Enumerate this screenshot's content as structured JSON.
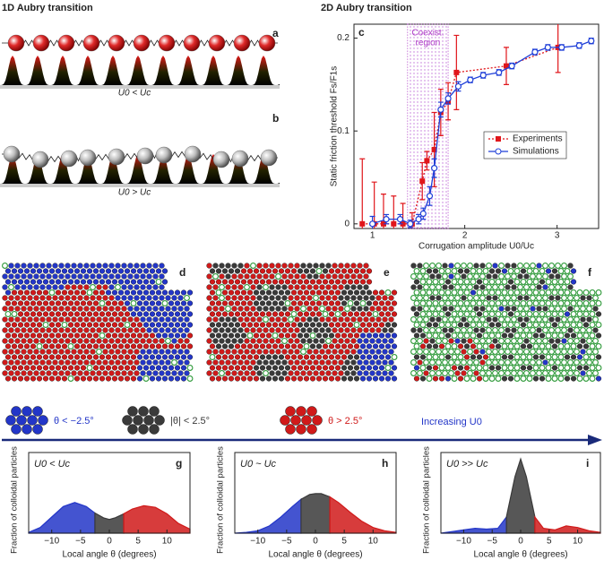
{
  "headings": {
    "left": "1D Aubry transition",
    "right": "2D Aubry transition"
  },
  "schematic": [
    {
      "letter": "a",
      "label": "U0 < Uc"
    },
    {
      "letter": "b",
      "label": "U0 > Uc"
    }
  ],
  "images": [
    {
      "letter": "d"
    },
    {
      "letter": "e"
    },
    {
      "letter": "f"
    }
  ],
  "legend": [
    {
      "label": "θ < −2.5°",
      "color": "#2336c8"
    },
    {
      "label": "|θ| < 2.5°",
      "color": "#3a3a3a"
    },
    {
      "label": "θ > 2.5°",
      "color": "#d01a1a"
    }
  ],
  "arrow_label": "Increasing U0",
  "chart_data": [
    {
      "type": "line",
      "letter": "c",
      "xlabel": "Corrugation amplitude U0/Uc",
      "ylabel": "Static friction threshold Fs/F1s",
      "xlim": [
        0.8,
        3.45
      ],
      "ylim": [
        -0.005,
        0.215
      ],
      "xticks": [
        1,
        2,
        3
      ],
      "yticks": [
        0,
        0.1,
        0.2
      ],
      "region": {
        "lines": [
          "Coexist.",
          "region"
        ],
        "range": [
          1.38,
          1.82
        ],
        "color": "#b040c8"
      },
      "legend": "right",
      "series": [
        {
          "name": "Experiments",
          "color": "#e0161b",
          "marker": "square",
          "dash": true,
          "x": [
            0.89,
            1.02,
            1.12,
            1.23,
            1.33,
            1.43,
            1.54,
            1.59,
            1.67,
            1.74,
            1.82,
            1.91,
            2.45,
            3.01
          ],
          "values": [
            0,
            0,
            0,
            0,
            0,
            0,
            0.046,
            0.068,
            0.08,
            0.12,
            0.132,
            0.163,
            0.17,
            0.19
          ],
          "errors": [
            0.07,
            0.045,
            0.032,
            0.03,
            0.022,
            0.012,
            0.02,
            0.01,
            0.04,
            0.025,
            0.02,
            0.04,
            0.02,
            0.027
          ]
        },
        {
          "name": "Simulations",
          "color": "#1f3fd8",
          "marker": "circle",
          "dash": false,
          "x": [
            1.0,
            1.15,
            1.3,
            1.41,
            1.5,
            1.55,
            1.62,
            1.67,
            1.74,
            1.82,
            1.93,
            2.06,
            2.2,
            2.37,
            2.51,
            2.76,
            2.9,
            3.05,
            3.24,
            3.37
          ],
          "values": [
            0,
            0.005,
            0.005,
            0,
            0.005,
            0.011,
            0.03,
            0.06,
            0.123,
            0.135,
            0.148,
            0.155,
            0.16,
            0.163,
            0.17,
            0.185,
            0.19,
            0.19,
            0.192,
            0.197
          ],
          "errors": [
            0.008,
            0.005,
            0.005,
            0.004,
            0.005,
            0.006,
            0.01,
            0.01,
            0.008,
            0.006,
            0.005,
            0.003,
            0.003,
            0.003,
            0.003,
            0.003,
            0.003,
            0.003,
            0.003,
            0.003
          ]
        }
      ]
    },
    {
      "type": "area",
      "letter": "g",
      "annotation": "U0 < Uc",
      "xlabel": "Local angle θ (degrees)",
      "ylabel": "Fraction of colloidal particles",
      "xlim": [
        -14,
        14
      ],
      "ylim": [
        0,
        1
      ],
      "xticks": [
        {
          "value": -10,
          "label": "−10"
        },
        {
          "value": -5,
          "label": "−5"
        },
        0,
        5,
        10
      ],
      "x": [
        -14,
        -12,
        -10,
        -8,
        -6,
        -4,
        -2.5,
        -1,
        0,
        1,
        2.5,
        4,
        6,
        8,
        10,
        12,
        14
      ],
      "series": [
        {
          "color": "#2336c8",
          "values": [
            0.01,
            0.07,
            0.2,
            0.33,
            0.38,
            0.33,
            0.25,
            null,
            null,
            null,
            null,
            null,
            null,
            null,
            null,
            null,
            null
          ]
        },
        {
          "color": "#3a3a3a",
          "values": [
            null,
            null,
            null,
            null,
            null,
            null,
            0.25,
            0.19,
            0.17,
            0.19,
            0.24,
            null,
            null,
            null,
            null,
            null,
            null
          ]
        },
        {
          "color": "#d01a1a",
          "values": [
            null,
            null,
            null,
            null,
            null,
            null,
            null,
            null,
            null,
            null,
            0.24,
            0.3,
            0.34,
            0.32,
            0.24,
            0.12,
            0.05
          ]
        }
      ]
    },
    {
      "type": "area",
      "letter": "h",
      "annotation": "U0 ~ Uc",
      "xlabel": "Local angle θ (degrees)",
      "ylabel": "Fraction of colloidal particles",
      "xlim": [
        -14,
        14
      ],
      "ylim": [
        0,
        1
      ],
      "xticks": [
        {
          "value": -10,
          "label": "−10"
        },
        {
          "value": -5,
          "label": "−5"
        },
        0,
        5,
        10
      ],
      "x": [
        -14,
        -12,
        -10,
        -8,
        -6,
        -4,
        -2.5,
        -1,
        0,
        1,
        2.5,
        4,
        6,
        8,
        10,
        12,
        14
      ],
      "series": [
        {
          "color": "#2336c8",
          "values": [
            0,
            0.01,
            0.03,
            0.09,
            0.2,
            0.33,
            0.42,
            null,
            null,
            null,
            null,
            null,
            null,
            null,
            null,
            null,
            null
          ]
        },
        {
          "color": "#3a3a3a",
          "values": [
            null,
            null,
            null,
            null,
            null,
            null,
            0.42,
            0.48,
            0.49,
            0.49,
            0.45,
            null,
            null,
            null,
            null,
            null,
            null
          ]
        },
        {
          "color": "#d01a1a",
          "values": [
            null,
            null,
            null,
            null,
            null,
            null,
            null,
            null,
            null,
            null,
            0.45,
            0.38,
            0.26,
            0.15,
            0.07,
            0.03,
            0.01
          ]
        }
      ]
    },
    {
      "type": "area",
      "letter": "i",
      "annotation": "U0 >> Uc",
      "xlabel": "Local angle θ (degrees)",
      "ylabel": "Fraction of colloidal particles",
      "xlim": [
        -14,
        14
      ],
      "ylim": [
        0,
        1
      ],
      "xticks": [
        {
          "value": -10,
          "label": "−10"
        },
        {
          "value": -5,
          "label": "−5"
        },
        0,
        5,
        10
      ],
      "x": [
        -14,
        -12,
        -10,
        -8,
        -6,
        -4,
        -2.5,
        -1,
        0,
        1,
        2.5,
        4,
        6,
        8,
        10,
        12,
        14
      ],
      "series": [
        {
          "color": "#2336c8",
          "values": [
            0,
            0.02,
            0.04,
            0.06,
            0.05,
            0.06,
            0.2,
            null,
            null,
            null,
            null,
            null,
            null,
            null,
            null,
            null,
            null
          ]
        },
        {
          "color": "#3a3a3a",
          "values": [
            null,
            null,
            null,
            null,
            null,
            null,
            0.2,
            0.7,
            0.92,
            0.7,
            0.2,
            null,
            null,
            null,
            null,
            null,
            null
          ]
        },
        {
          "color": "#d01a1a",
          "values": [
            null,
            null,
            null,
            null,
            null,
            null,
            null,
            null,
            null,
            null,
            0.2,
            0.06,
            0.04,
            0.09,
            0.07,
            0.03,
            0.01
          ]
        }
      ]
    }
  ]
}
